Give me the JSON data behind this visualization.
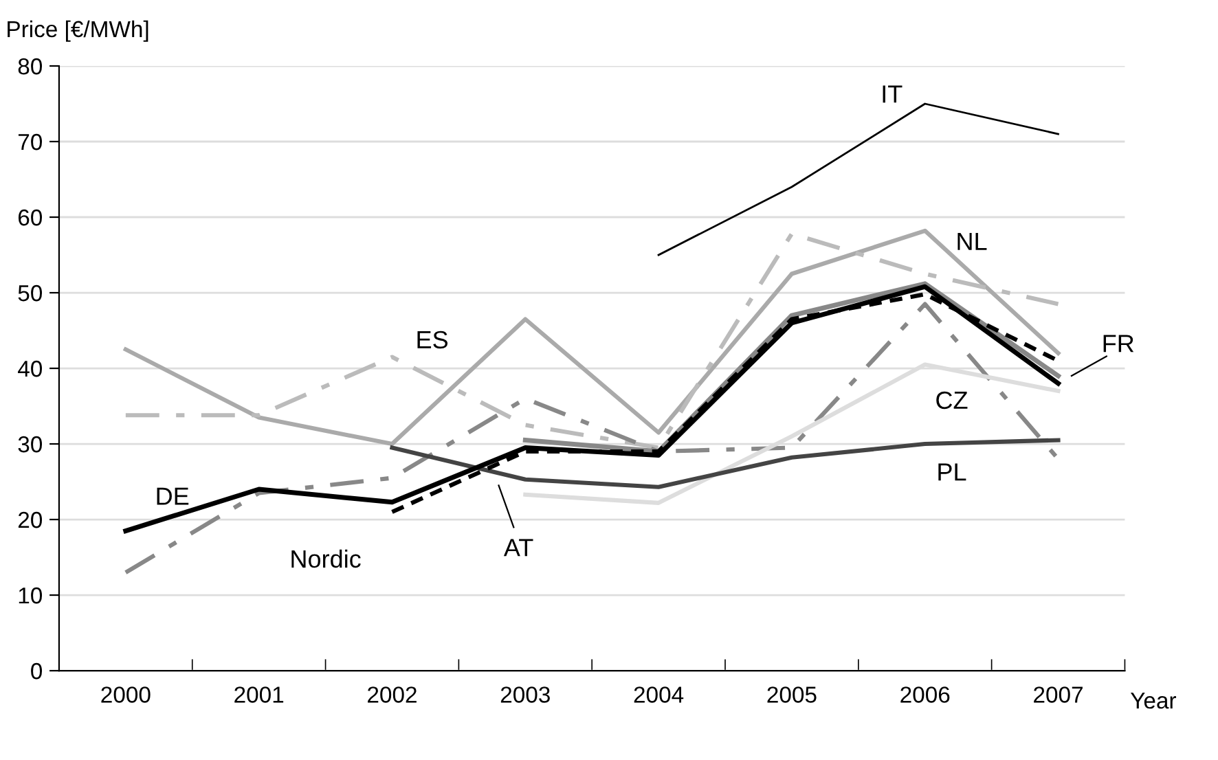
{
  "chart_data": {
    "type": "line",
    "xlabel": "Year",
    "ylabel": "Price [€/MWh]",
    "categories": [
      "2000",
      "2001",
      "2002",
      "2003",
      "2004",
      "2005",
      "2006",
      "2007"
    ],
    "ylim": [
      0,
      80
    ],
    "yticks": [
      0,
      10,
      20,
      30,
      40,
      50,
      60,
      70,
      80
    ],
    "grid": "y",
    "legend": false,
    "series": [
      {
        "color": "#aaaaaa",
        "line_style": "solid",
        "values": [
          42.5,
          33.5,
          30,
          46.5,
          31.5,
          52.5,
          58.2,
          42
        ]
      },
      {
        "color": "#bbbbbb",
        "line_style": "dashed",
        "values": [
          33.8,
          33.8,
          41.5,
          32.5,
          29.5,
          57.8,
          52.5,
          48.5
        ]
      },
      {
        "color": "#888888",
        "line_style": "dashed",
        "values": [
          13,
          23.5,
          25.5,
          36,
          29,
          29.5,
          48.5,
          28
        ]
      },
      {
        "color": "#dddddd",
        "line_style": "solid",
        "values": [
          null,
          null,
          null,
          23.3,
          22.2,
          31,
          40.5,
          37
        ]
      },
      {
        "color": "#444444",
        "line_style": "solid",
        "values": [
          null,
          null,
          29.5,
          25.3,
          24.3,
          28.2,
          30,
          30.5
        ]
      },
      {
        "color": "#888888",
        "line_style": "solid",
        "values": [
          null,
          null,
          null,
          30.5,
          29,
          47,
          51.2,
          39
        ]
      },
      {
        "color": "#000000",
        "line_style": "dotted",
        "values": [
          null,
          null,
          21,
          29,
          29,
          46.5,
          49.8,
          41
        ]
      },
      {
        "color": "#000000",
        "line_style": "solid",
        "values": [
          18.5,
          24,
          22.3,
          29.5,
          28.5,
          46,
          50.8,
          38
        ]
      },
      {
        "color": "#000000",
        "line_style": "solid",
        "values": [
          null,
          null,
          null,
          null,
          55,
          64,
          75,
          71
        ]
      }
    ],
    "annotations": [
      "IT",
      "NL",
      "ES",
      "FR",
      "CZ",
      "PL",
      "DE",
      "Nordic",
      "AT"
    ]
  }
}
